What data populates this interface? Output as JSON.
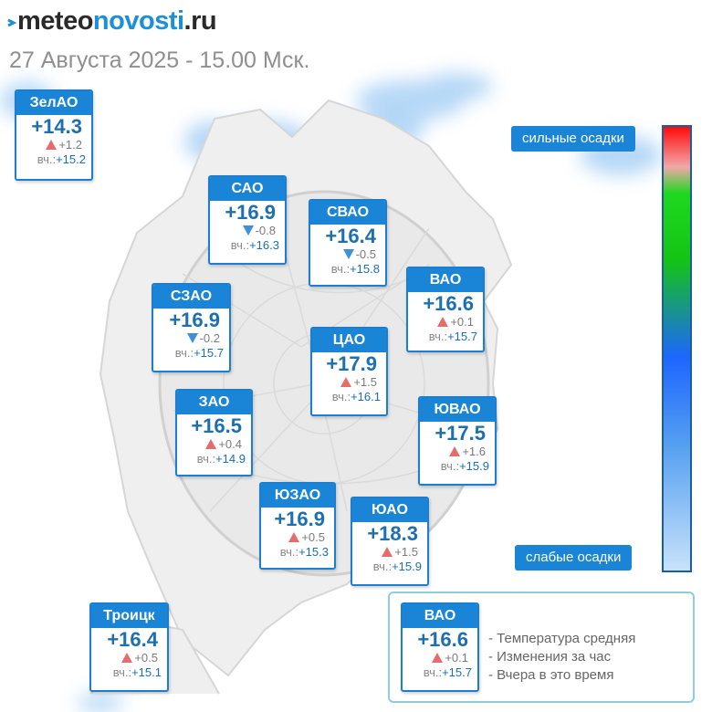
{
  "header": {
    "logo_meteo": "meteo",
    "logo_novosti": "novosti",
    "logo_ru": ".ru",
    "datetime": "27 Августа 2025 - 15.00 Мск."
  },
  "districts": [
    {
      "id": "zelao",
      "name": "ЗелАО",
      "temp": "+14.3",
      "change": "+1.2",
      "trend": "up",
      "yesterday_label": "вч.:",
      "yesterday": "+15.2"
    },
    {
      "id": "sao",
      "name": "САО",
      "temp": "+16.9",
      "change": "-0.8",
      "trend": "down",
      "yesterday_label": "вч.:",
      "yesterday": "+16.3"
    },
    {
      "id": "svao",
      "name": "СВАО",
      "temp": "+16.4",
      "change": "-0.5",
      "trend": "down",
      "yesterday_label": "вч.:",
      "yesterday": "+15.8"
    },
    {
      "id": "vao",
      "name": "ВАО",
      "temp": "+16.6",
      "change": "+0.1",
      "trend": "up",
      "yesterday_label": "вч.:",
      "yesterday": "+15.7"
    },
    {
      "id": "szao",
      "name": "СЗАО",
      "temp": "+16.9",
      "change": "-0.2",
      "trend": "down",
      "yesterday_label": "вч.:",
      "yesterday": "+15.7"
    },
    {
      "id": "cao",
      "name": "ЦАО",
      "temp": "+17.9",
      "change": "+1.5",
      "trend": "up",
      "yesterday_label": "вч.:",
      "yesterday": "+16.1"
    },
    {
      "id": "zao",
      "name": "ЗАО",
      "temp": "+16.5",
      "change": "+0.4",
      "trend": "up",
      "yesterday_label": "вч.:",
      "yesterday": "+14.9"
    },
    {
      "id": "yuvao",
      "name": "ЮВАО",
      "temp": "+17.5",
      "change": "+1.6",
      "trend": "up",
      "yesterday_label": "вч.:",
      "yesterday": "+15.9"
    },
    {
      "id": "yuzao",
      "name": "ЮЗАО",
      "temp": "+16.9",
      "change": "+0.5",
      "trend": "up",
      "yesterday_label": "вч.:",
      "yesterday": "+15.3"
    },
    {
      "id": "yuao",
      "name": "ЮАО",
      "temp": "+18.3",
      "change": "+1.5",
      "trend": "up",
      "yesterday_label": "вч.:",
      "yesterday": "+15.9"
    },
    {
      "id": "troitsk",
      "name": "Троицк",
      "temp": "+16.4",
      "change": "+0.5",
      "trend": "up",
      "yesterday_label": "вч.:",
      "yesterday": "+15.1"
    }
  ],
  "precip_scale": {
    "top_label": "сильные осадки",
    "bottom_label": "слабые осадки"
  },
  "legend": {
    "sample": {
      "name": "ВАО",
      "temp": "+16.6",
      "change": "+0.1",
      "trend": "up",
      "yesterday_label": "вч.:",
      "yesterday": "+15.7"
    },
    "lines": [
      "- Температура средняя",
      "- Изменения за час",
      "- Вчера в это время"
    ]
  },
  "colors": {
    "card_header": "#1a85d6",
    "temperature_text": "#1c6fb0",
    "trend_up": "#e66b6b",
    "trend_down": "#3f8ee0",
    "precip_light": "#7ab8f0"
  }
}
